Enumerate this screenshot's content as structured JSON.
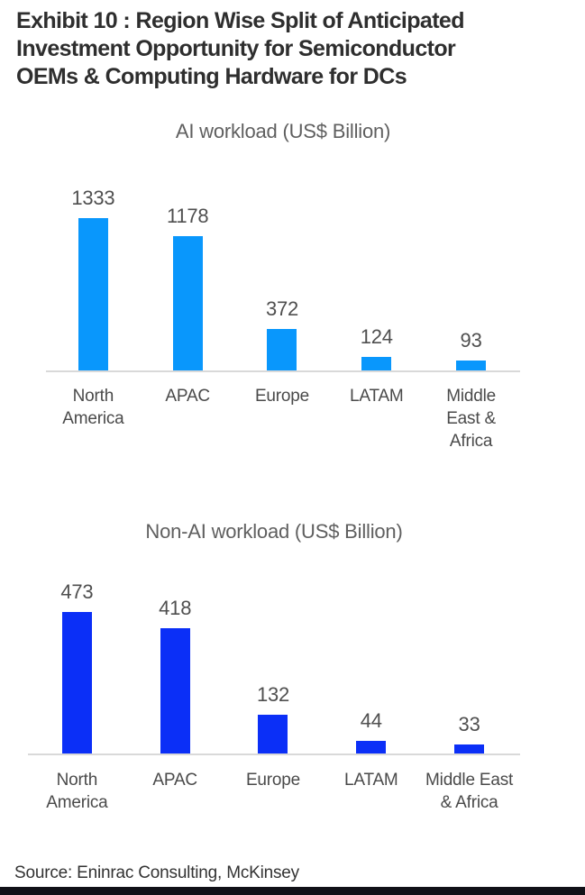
{
  "header": {
    "title": "Exhibit 10 : Region Wise Split of Anticipated Investment Opportunity for Semiconductor OEMs & Computing Hardware for DCs",
    "title_lines": [
      "Exhibit 10 : Region Wise Split of Anticipated",
      "Investment Opportunity for Semiconductor",
      "OEMs & Computing Hardware for DCs"
    ]
  },
  "chart_data": [
    {
      "type": "bar",
      "title": "AI workload (US$ Billion)",
      "categories": [
        "North America",
        "APAC",
        "Europe",
        "LATAM",
        "Middle East & Africa"
      ],
      "category_lines": [
        [
          "North",
          "America"
        ],
        [
          "APAC"
        ],
        [
          "Europe"
        ],
        [
          "LATAM"
        ],
        [
          "Middle",
          "East &",
          "Africa"
        ]
      ],
      "values": [
        1333,
        1178,
        372,
        124,
        93
      ],
      "unit": "US$ Billion",
      "bar_color": "#0997fc",
      "value_label_color": "#4f4f4f",
      "ylim": [
        0,
        1400
      ],
      "grid": false,
      "legend": false,
      "value_labels": true
    },
    {
      "type": "bar",
      "title": "Non-AI workload (US$ Billion)",
      "categories": [
        "North America",
        "APAC",
        "Europe",
        "LATAM",
        "Middle East & Africa"
      ],
      "category_lines": [
        [
          "North",
          "America"
        ],
        [
          "APAC"
        ],
        [
          "Europe"
        ],
        [
          "LATAM"
        ],
        [
          "Middle East",
          "& Africa"
        ]
      ],
      "values": [
        473,
        418,
        132,
        44,
        33
      ],
      "unit": "US$ Billion",
      "bar_color": "#0b2ff7",
      "value_label_color": "#4f4f4f",
      "ylim": [
        0,
        500
      ],
      "grid": false,
      "legend": false,
      "value_labels": true
    }
  ],
  "footer": {
    "source": "Source: Eninrac Consulting, McKinsey"
  },
  "colors": {
    "background": "#ffffff",
    "title_text": "#2e2e2e",
    "chart_title_text": "#5f5f5f",
    "axis_label_text": "#4a4a4a",
    "axis_line": "#d9d9d9",
    "ai_bar": "#0997fc",
    "non_ai_bar": "#0b2ff7",
    "bottom_bar": "#111118"
  }
}
